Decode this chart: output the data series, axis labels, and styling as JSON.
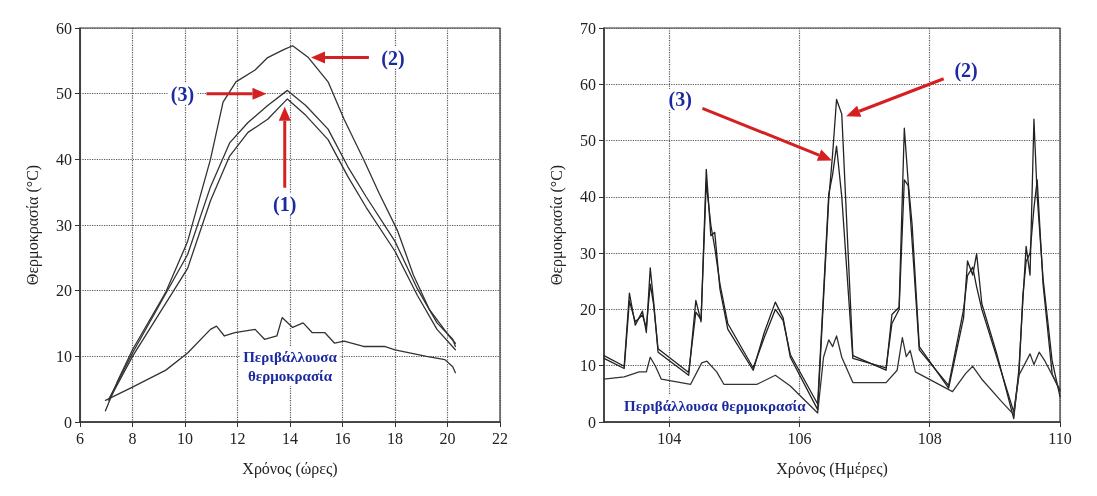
{
  "chart_data": [
    {
      "type": "line",
      "xlabel": "Χρόνος (ώρες)",
      "ylabel": "Θερμοκρασία (°C)",
      "xlim": [
        6,
        22
      ],
      "xticks": [
        6,
        8,
        10,
        12,
        14,
        16,
        18,
        20,
        22
      ],
      "ylim": [
        0,
        60
      ],
      "yticks": [
        0,
        10,
        20,
        30,
        40,
        50,
        60
      ],
      "grid": true,
      "marker": "none",
      "line_style": "solid",
      "series": [
        {
          "color": "#333333",
          "x": [
            6.97,
            7.45,
            8,
            9.27,
            10.1,
            10.97,
            11.45,
            11.94,
            12.67,
            13.15,
            13.76,
            14.1,
            14.7,
            15.45,
            16.06,
            16.8,
            17.4,
            18.1,
            18.7,
            19.3,
            20.06,
            20.3
          ],
          "values": [
            1.7,
            6.4,
            11,
            19.8,
            27.5,
            40,
            48.7,
            51.8,
            53.6,
            55.5,
            56.7,
            57.3,
            55.5,
            51.8,
            46.1,
            40,
            34.8,
            29.1,
            22.4,
            17.2,
            13.1,
            12
          ]
        },
        {
          "color": "#333333",
          "x": [
            7.1,
            8,
            10.1,
            10.97,
            11.7,
            12.4,
            13.15,
            13.9,
            14.6,
            15.45,
            16.2,
            16.9,
            18,
            18.85,
            19.6,
            20.2,
            20.3
          ],
          "values": [
            3.5,
            10.5,
            25.5,
            35.8,
            42.5,
            45.6,
            48.2,
            50.5,
            48.2,
            44.6,
            38.9,
            34.3,
            27.5,
            20.3,
            15.1,
            12.6,
            11.5
          ]
        },
        {
          "color": "#333333",
          "x": [
            7.1,
            8,
            10.1,
            10.97,
            11.7,
            12.4,
            13.15,
            13.9,
            14.6,
            15.45,
            16.2,
            16.9,
            18,
            18.85,
            19.6,
            20.3
          ],
          "values": [
            3.3,
            10,
            23.4,
            33.7,
            40.5,
            44.1,
            46.1,
            49.2,
            46.7,
            43,
            37.4,
            32.7,
            26,
            19.3,
            14.1,
            11
          ]
        },
        {
          "color": "#333333",
          "x": [
            6.97,
            8,
            9.27,
            10.1,
            10.97,
            11.2,
            11.5,
            11.9,
            12.67,
            13.03,
            13.5,
            13.7,
            14.1,
            14.5,
            14.85,
            15.33,
            15.7,
            16.06,
            16.8,
            17.6,
            18,
            18.6,
            19.2,
            19.9,
            20.2,
            20.3
          ],
          "values": [
            3.3,
            5.3,
            7.9,
            10.5,
            14.1,
            14.6,
            13.1,
            13.6,
            14.1,
            12.6,
            13.1,
            15.9,
            14.4,
            15.1,
            13.6,
            13.6,
            12,
            12.3,
            11.5,
            11.5,
            11,
            10.5,
            10,
            9.5,
            8.4,
            7.5
          ]
        }
      ],
      "annotations": [
        "(2)",
        "(3)",
        "(1)",
        "Περιβάλλουσα θερμοκρασία"
      ]
    },
    {
      "type": "line",
      "xlabel": "Χρόνος (Ημέρες)",
      "ylabel": "Θερμοκρασία (°C)",
      "xlim": [
        103,
        110
      ],
      "xticks": [
        104,
        106,
        108,
        110
      ],
      "ylim": [
        0,
        70
      ],
      "yticks": [
        0,
        10,
        20,
        30,
        40,
        50,
        60,
        70
      ],
      "grid": true,
      "marker": "none",
      "line_style": "solid",
      "series": [
        {
          "color": "#222222",
          "x": [
            103.0,
            103.31,
            103.39,
            103.48,
            103.59,
            103.65,
            103.71,
            103.76,
            103.83,
            104.3,
            104.41,
            104.49,
            104.57,
            104.64,
            104.7,
            104.78,
            104.9,
            105.29,
            105.46,
            105.63,
            105.75,
            105.86,
            106.28,
            106.45,
            106.51,
            106.57,
            106.65,
            106.82,
            107.33,
            107.42,
            107.53,
            107.61,
            107.67,
            107.73,
            107.84,
            108.29,
            108.52,
            108.58,
            108.66,
            108.72,
            108.8,
            109.03,
            109.29,
            109.37,
            109.43,
            109.48,
            109.54,
            109.6,
            109.65,
            109.74,
            109.88,
            110
          ],
          "values": [
            11.8,
            9.9,
            22.9,
            17.2,
            19.7,
            15.9,
            27.4,
            21.6,
            12.4,
            8.3,
            21.6,
            17.8,
            44.9,
            33.1,
            33.7,
            23.6,
            16.5,
            9.2,
            15.9,
            21.3,
            18.5,
            11.5,
            2.2,
            39.5,
            47.7,
            57.3,
            54.7,
            11.8,
            9.2,
            19.1,
            20.4,
            52.2,
            42.6,
            35,
            13.4,
            6,
            18.5,
            28.6,
            26.1,
            29.9,
            21,
            12.1,
            0.6,
            9.5,
            21.6,
            31.2,
            26.1,
            53.8,
            40.1,
            25.5,
            10.8,
            4.5
          ]
        },
        {
          "color": "#222222",
          "x": [
            103.0,
            103.31,
            103.39,
            103.48,
            103.59,
            103.65,
            103.71,
            103.76,
            103.83,
            104.3,
            104.41,
            104.49,
            104.57,
            104.64,
            104.7,
            104.78,
            104.9,
            105.29,
            105.46,
            105.63,
            105.75,
            105.86,
            106.28,
            106.45,
            106.51,
            106.57,
            106.65,
            106.82,
            107.33,
            107.42,
            107.53,
            107.61,
            107.67,
            107.73,
            107.84,
            108.29,
            108.52,
            108.58,
            108.66,
            108.72,
            108.8,
            109.03,
            109.29,
            109.37,
            109.43,
            109.48,
            109.54,
            109.6,
            109.65,
            109.74,
            109.88,
            110
          ],
          "values": [
            11.3,
            9.5,
            21.5,
            17.8,
            19,
            16.8,
            24.5,
            21,
            13,
            8.8,
            19.5,
            18.2,
            42.5,
            35,
            31,
            24.5,
            17.5,
            9.6,
            15,
            20,
            18,
            12,
            3.2,
            40.5,
            44,
            49,
            40,
            11.3,
            9.6,
            17.5,
            20,
            43,
            42,
            32,
            12.8,
            6.5,
            20,
            26,
            27.5,
            24,
            20,
            11.5,
            1.8,
            8.5,
            22.5,
            28.5,
            30,
            38,
            43,
            24.5,
            8.5,
            5.5
          ]
        },
        {
          "color": "#333333",
          "x": [
            103.0,
            103.31,
            103.54,
            103.65,
            103.71,
            103.79,
            103.88,
            104.33,
            104.5,
            104.58,
            104.73,
            104.84,
            105.35,
            105.63,
            105.86,
            106.28,
            106.37,
            106.45,
            106.51,
            106.57,
            106.65,
            106.82,
            107.33,
            107.5,
            107.58,
            107.64,
            107.7,
            107.78,
            108.35,
            108.55,
            108.66,
            108.8,
            109.09,
            109.29,
            109.37,
            109.54,
            109.6,
            109.68,
            109.77,
            110
          ],
          "values": [
            7.6,
            8,
            8.9,
            8.9,
            11.5,
            9.9,
            7.6,
            6.7,
            10.5,
            10.8,
            8.9,
            6.7,
            6.7,
            8.3,
            6.4,
            1.6,
            11.5,
            14.6,
            13.4,
            15.3,
            11.5,
            7,
            7,
            9.2,
            15,
            11.6,
            12.7,
            8.9,
            5.4,
            8.6,
            9.9,
            7.6,
            3.8,
            1.3,
            8.3,
            12.1,
            10.2,
            12.4,
            10.8,
            5.7
          ]
        }
      ],
      "annotations": [
        "(3)",
        "(2)",
        "Περιβάλλουσα θερμοκρασία"
      ]
    }
  ]
}
